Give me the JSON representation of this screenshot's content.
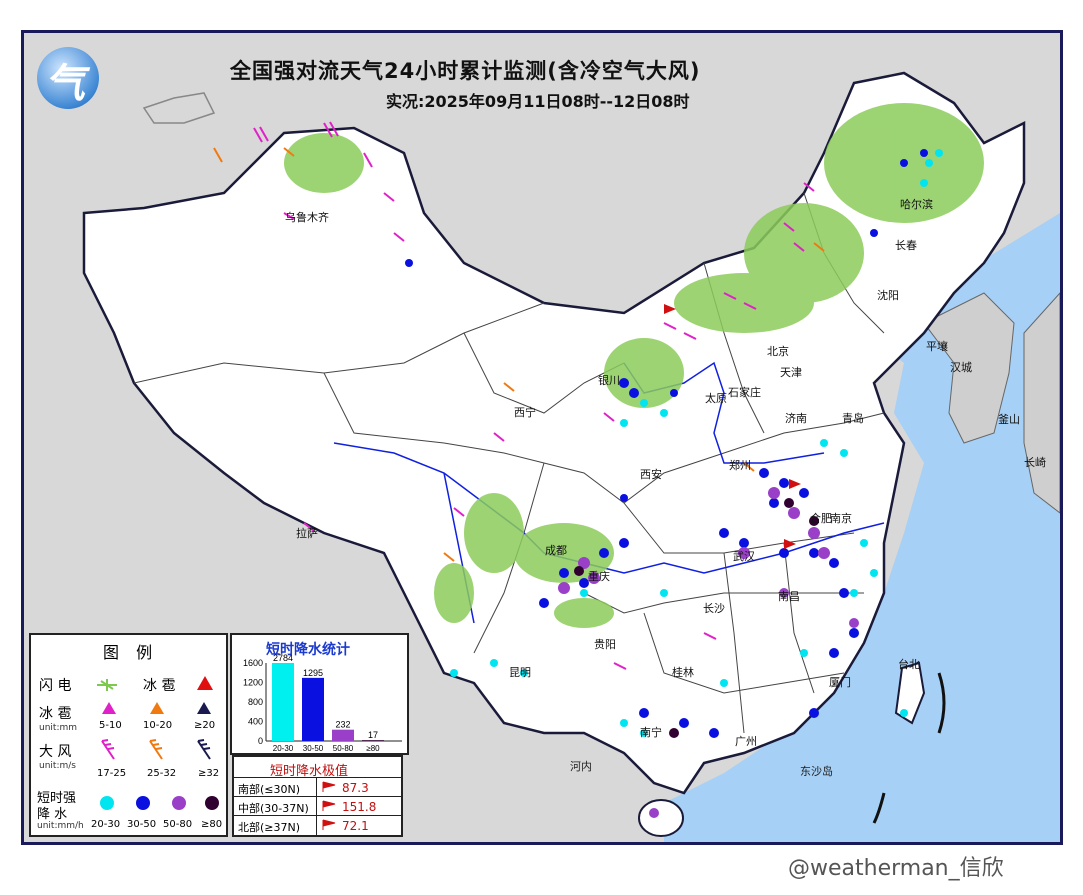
{
  "header": {
    "title": "全国强对流天气24小时累计监测(含冷空气大风)",
    "subtitle": "实况:2025年09月11日08时--12日08时",
    "logo_glyph": "气"
  },
  "cities": [
    {
      "id": "urumqi",
      "name": "乌鲁木齐"
    },
    {
      "id": "harbin",
      "name": "哈尔滨"
    },
    {
      "id": "changchun",
      "name": "长春"
    },
    {
      "id": "shenyang",
      "name": "沈阳"
    },
    {
      "id": "pyongyang",
      "name": "平壤"
    },
    {
      "id": "seoul",
      "name": "汉城"
    },
    {
      "id": "busan",
      "name": "釜山"
    },
    {
      "id": "nagasaki",
      "name": "长崎"
    },
    {
      "id": "beijing",
      "name": "北京"
    },
    {
      "id": "tianjin",
      "name": "天津"
    },
    {
      "id": "shijiazhuang",
      "name": "石家庄"
    },
    {
      "id": "taiyuan",
      "name": "太原"
    },
    {
      "id": "jinan",
      "name": "济南"
    },
    {
      "id": "qingdao",
      "name": "青岛"
    },
    {
      "id": "yinchuan",
      "name": "银川"
    },
    {
      "id": "xining",
      "name": "西宁"
    },
    {
      "id": "xian",
      "name": "西安"
    },
    {
      "id": "zhengzhou",
      "name": "郑州"
    },
    {
      "id": "hefei",
      "name": "合肥"
    },
    {
      "id": "nanjing",
      "name": "南京"
    },
    {
      "id": "chengdu",
      "name": "成都"
    },
    {
      "id": "chongqing",
      "name": "重庆"
    },
    {
      "id": "wuhan",
      "name": "武汉"
    },
    {
      "id": "lhasa",
      "name": "拉萨"
    },
    {
      "id": "changsha",
      "name": "长沙"
    },
    {
      "id": "nanchang",
      "name": "南昌"
    },
    {
      "id": "guiyang",
      "name": "贵阳"
    },
    {
      "id": "kunming",
      "name": "昆明"
    },
    {
      "id": "guilin",
      "name": "桂林"
    },
    {
      "id": "guangzhou",
      "name": "广州"
    },
    {
      "id": "xiamen",
      "name": "厦门"
    },
    {
      "id": "taibei",
      "name": "台北"
    },
    {
      "id": "nanning",
      "name": "南宁"
    }
  ],
  "seas": {
    "hanoi": "河内",
    "dongsha": "东沙岛"
  },
  "legend": {
    "title": "图  例",
    "lightning_label": "闪 电",
    "hail_label": "冰 雹",
    "hail_row_label": "冰 雹",
    "hail_unit": "unit:mm",
    "hail_values": [
      "5-10",
      "10-20",
      "≥20"
    ],
    "wind_label": "大 风",
    "wind_unit": "unit:m/s",
    "wind_values": [
      "17-25",
      "25-32",
      "≥32"
    ],
    "rain_label_1": "短时强",
    "rain_label_2": "降 水",
    "rain_unit": "unit:mm/h",
    "rain_values": [
      "20-30",
      "30-50",
      "50-80",
      "≥80"
    ],
    "colors": {
      "lightning": "#7ec850",
      "hail_small": "#e020c8",
      "hail_mid": "#f07a10",
      "hail_large": "#1a1a50",
      "hail_red": "#e01010",
      "wind_small": "#e020c8",
      "wind_mid": "#f07a10",
      "wind_large": "#1a1a50",
      "rain_20_30": "#00e5f0",
      "rain_30_50": "#0a10e0",
      "rain_50_80": "#9a40c8",
      "rain_80": "#300030"
    }
  },
  "stats": {
    "title": "短时降水统计",
    "y_ticks": [
      "1600",
      "1200",
      "800",
      "400",
      "0"
    ],
    "y_max": 1600,
    "bars": [
      {
        "label": "20-30",
        "value": 2784,
        "value_text": "2784",
        "color": "#00f0f0"
      },
      {
        "label": "30-50",
        "value": 1295,
        "value_text": "1295",
        "color": "#0a10e0"
      },
      {
        "label": "50-80",
        "value": 232,
        "value_text": "232",
        "color": "#9a40c8"
      },
      {
        "label": "≥80",
        "value": 17,
        "value_text": "17",
        "color": "#300030"
      }
    ]
  },
  "extremes": {
    "title": "短时降水极值",
    "rows": [
      {
        "region": "南部(≤30N)",
        "value": "87.3"
      },
      {
        "region": "中部(30-37N)",
        "value": "151.8"
      },
      {
        "region": "北部(≥37N)",
        "value": "72.1"
      }
    ]
  },
  "watermark": "@weatherman_信欣"
}
